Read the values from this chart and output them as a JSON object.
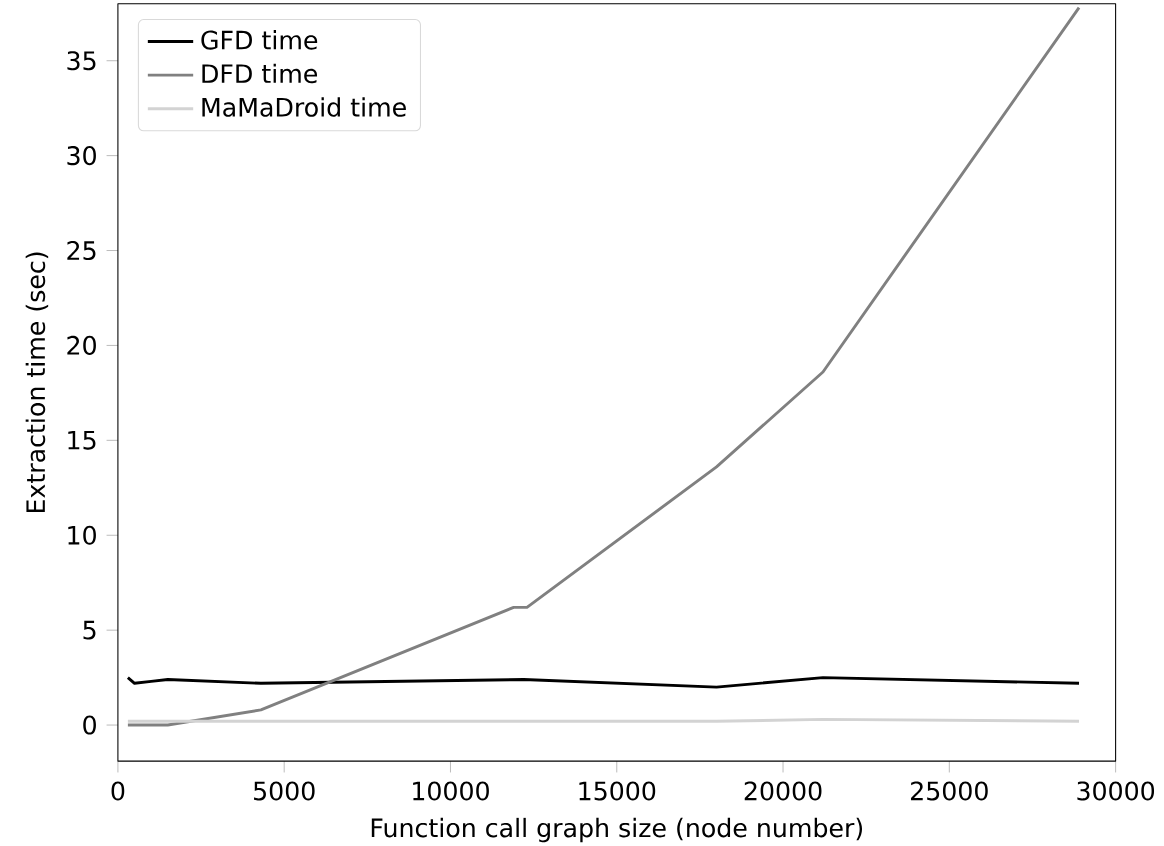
{
  "chart_data": {
    "type": "line",
    "xlabel": "Function call graph size (node number)",
    "ylabel": "Extraction time (sec)",
    "xlim": [
      0,
      30000
    ],
    "ylim": [
      -1.9,
      38.0
    ],
    "xticks": [
      0,
      5000,
      10000,
      15000,
      20000,
      25000,
      30000
    ],
    "yticks": [
      0,
      5,
      10,
      15,
      20,
      25,
      30,
      35
    ],
    "legend": "top left",
    "grid": false,
    "series": [
      {
        "name": "GFD time",
        "color": "#000000",
        "x": [
          300,
          500,
          1000,
          1500,
          4300,
          12200,
          18000,
          21200,
          28900
        ],
        "values": [
          2.5,
          2.2,
          2.3,
          2.4,
          2.2,
          2.4,
          2.0,
          2.5,
          2.2
        ]
      },
      {
        "name": "DFD time",
        "color": "#808080",
        "x": [
          300,
          1500,
          4300,
          11900,
          12300,
          18000,
          21200,
          28900
        ],
        "values": [
          0.0,
          0.0,
          0.8,
          6.2,
          6.2,
          13.6,
          18.6,
          37.8
        ]
      },
      {
        "name": "MaMaDroid time",
        "color": "#d3d3d3",
        "x": [
          300,
          1500,
          4300,
          12200,
          18000,
          21200,
          28900
        ],
        "values": [
          0.2,
          0.2,
          0.2,
          0.2,
          0.2,
          0.3,
          0.2
        ]
      }
    ]
  }
}
